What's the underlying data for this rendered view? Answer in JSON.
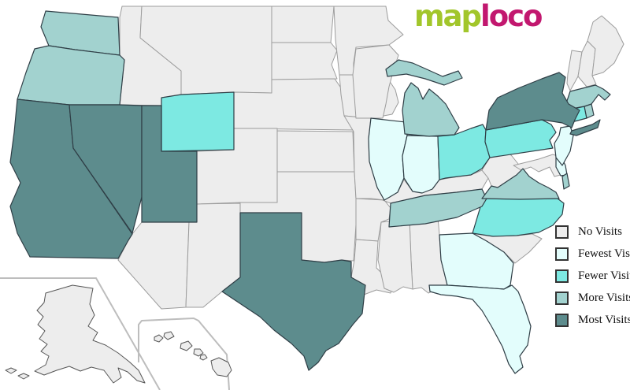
{
  "logo": {
    "text_map": "map",
    "text_loco": "loco",
    "color_map": "#a2c62b",
    "color_loco": "#c2186f"
  },
  "legend": {
    "items": [
      {
        "id": "none",
        "label": "No Visits",
        "color": "#ededed"
      },
      {
        "id": "fewest",
        "label": "Fewest Visits",
        "color": "#e3fdfc"
      },
      {
        "id": "fewer",
        "label": "Fewer Visits",
        "color": "#7de9e2"
      },
      {
        "id": "more",
        "label": "More Visits",
        "color": "#a2d2cf"
      },
      {
        "id": "most",
        "label": "Most Visits",
        "color": "#5d8c8d"
      }
    ]
  },
  "map": {
    "states": [
      {
        "id": "WA",
        "name": "Washington",
        "category": "more"
      },
      {
        "id": "OR",
        "name": "Oregon",
        "category": "more"
      },
      {
        "id": "CA",
        "name": "California",
        "category": "most"
      },
      {
        "id": "NV",
        "name": "Nevada",
        "category": "most"
      },
      {
        "id": "UT",
        "name": "Utah",
        "category": "most"
      },
      {
        "id": "WY",
        "name": "Wyoming",
        "category": "fewer"
      },
      {
        "id": "ID",
        "name": "Idaho",
        "category": "none"
      },
      {
        "id": "MT",
        "name": "Montana",
        "category": "none"
      },
      {
        "id": "ND",
        "name": "North Dakota",
        "category": "none"
      },
      {
        "id": "SD",
        "name": "South Dakota",
        "category": "none"
      },
      {
        "id": "NE",
        "name": "Nebraska",
        "category": "none"
      },
      {
        "id": "KS",
        "name": "Kansas",
        "category": "none"
      },
      {
        "id": "OK",
        "name": "Oklahoma",
        "category": "none"
      },
      {
        "id": "CO",
        "name": "Colorado",
        "category": "none"
      },
      {
        "id": "AZ",
        "name": "Arizona",
        "category": "none"
      },
      {
        "id": "NM",
        "name": "New Mexico",
        "category": "none"
      },
      {
        "id": "TX",
        "name": "Texas",
        "category": "most"
      },
      {
        "id": "MN",
        "name": "Minnesota",
        "category": "none"
      },
      {
        "id": "IA",
        "name": "Iowa",
        "category": "none"
      },
      {
        "id": "MO",
        "name": "Missouri",
        "category": "none"
      },
      {
        "id": "AR",
        "name": "Arkansas",
        "category": "none"
      },
      {
        "id": "LA",
        "name": "Louisiana",
        "category": "none"
      },
      {
        "id": "WI",
        "name": "Wisconsin",
        "category": "none"
      },
      {
        "id": "MI",
        "name": "Michigan",
        "category": "more"
      },
      {
        "id": "IL",
        "name": "Illinois",
        "category": "fewest"
      },
      {
        "id": "IN",
        "name": "Indiana",
        "category": "fewest"
      },
      {
        "id": "OH",
        "name": "Ohio",
        "category": "fewer"
      },
      {
        "id": "KY",
        "name": "Kentucky",
        "category": "none"
      },
      {
        "id": "TN",
        "name": "Tennessee",
        "category": "more"
      },
      {
        "id": "WV",
        "name": "West Virginia",
        "category": "none"
      },
      {
        "id": "VA",
        "name": "Virginia",
        "category": "more"
      },
      {
        "id": "MD",
        "name": "Maryland",
        "category": "none"
      },
      {
        "id": "DE",
        "name": "Delaware",
        "category": "fewest"
      },
      {
        "id": "NC",
        "name": "North Carolina",
        "category": "fewer"
      },
      {
        "id": "SC",
        "name": "South Carolina",
        "category": "none"
      },
      {
        "id": "GA",
        "name": "Georgia",
        "category": "fewest"
      },
      {
        "id": "FL",
        "name": "Florida",
        "category": "fewest"
      },
      {
        "id": "AL",
        "name": "Alabama",
        "category": "none"
      },
      {
        "id": "MS",
        "name": "Mississippi",
        "category": "none"
      },
      {
        "id": "PA",
        "name": "Pennsylvania",
        "category": "fewer"
      },
      {
        "id": "NY",
        "name": "New York",
        "category": "most"
      },
      {
        "id": "NJ",
        "name": "New Jersey",
        "category": "fewest"
      },
      {
        "id": "CT",
        "name": "Connecticut",
        "category": "fewer"
      },
      {
        "id": "RI",
        "name": "Rhode Island",
        "category": "more"
      },
      {
        "id": "MA",
        "name": "Massachusetts",
        "category": "more"
      },
      {
        "id": "VT",
        "name": "Vermont",
        "category": "none"
      },
      {
        "id": "NH",
        "name": "New Hampshire",
        "category": "none"
      },
      {
        "id": "ME",
        "name": "Maine",
        "category": "none"
      },
      {
        "id": "AK",
        "name": "Alaska",
        "category": "none"
      },
      {
        "id": "HI",
        "name": "Hawaii",
        "category": "none"
      }
    ]
  }
}
